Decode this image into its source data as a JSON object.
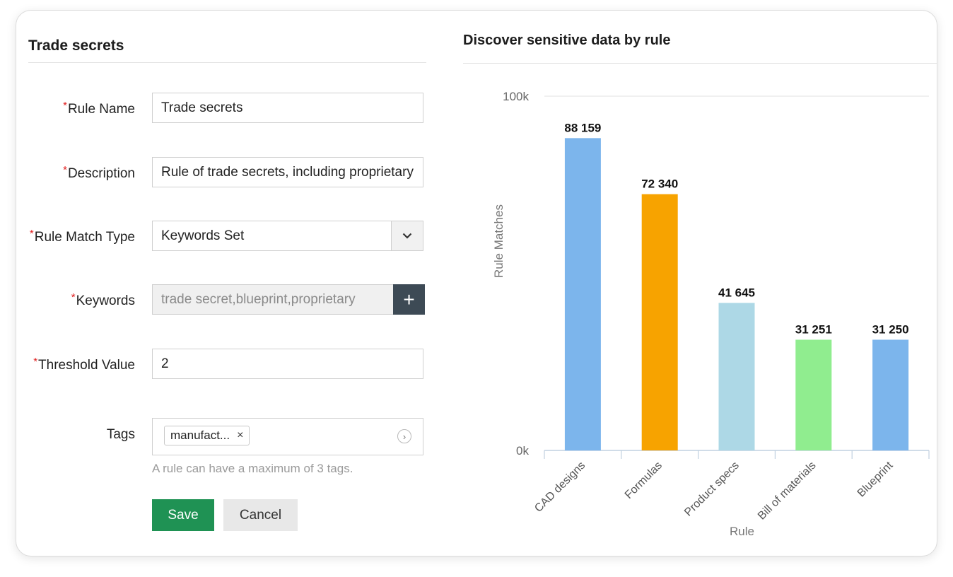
{
  "form": {
    "title": "Trade secrets",
    "required_mark": "*",
    "rule_name": {
      "label": "Rule Name",
      "value": "Trade secrets"
    },
    "description": {
      "label": "Description",
      "value": "Rule of trade secrets, including proprietary"
    },
    "match_type": {
      "label": "Rule Match Type",
      "value": "Keywords Set",
      "icon": "chevron-down-icon"
    },
    "keywords": {
      "label": "Keywords",
      "value": "trade secret,blueprint,proprietary",
      "add_label": "+"
    },
    "threshold": {
      "label": "Threshold Value",
      "value": "2"
    },
    "tags": {
      "label": "Tags",
      "chip": "manufact...",
      "remove": "×",
      "more": "›",
      "hint": "A rule can have a maximum of 3 tags."
    },
    "save_label": "Save",
    "cancel_label": "Cancel"
  },
  "chart_panel": {
    "title": "Discover sensitive data by rule"
  },
  "chart_data": {
    "type": "bar",
    "categories": [
      "CAD designs",
      "Formulas",
      "Product specs",
      "Bill of materials",
      "Blueprint"
    ],
    "values": [
      88159,
      72340,
      41645,
      31251,
      31250
    ],
    "value_labels": [
      "88 159",
      "72 340",
      "41 645",
      "31 251",
      "31 250"
    ],
    "colors": [
      "#7cb5ec",
      "#f7a300",
      "#add8e6",
      "#90ed8f",
      "#7cb5ec"
    ],
    "ylabel": "Rule Matches",
    "xlabel": "Rule",
    "ylim": [
      0,
      100000
    ],
    "y_ticks": [
      0,
      100000
    ],
    "y_tick_labels": [
      "0k",
      "100k"
    ],
    "grid": true,
    "legend": "none"
  }
}
